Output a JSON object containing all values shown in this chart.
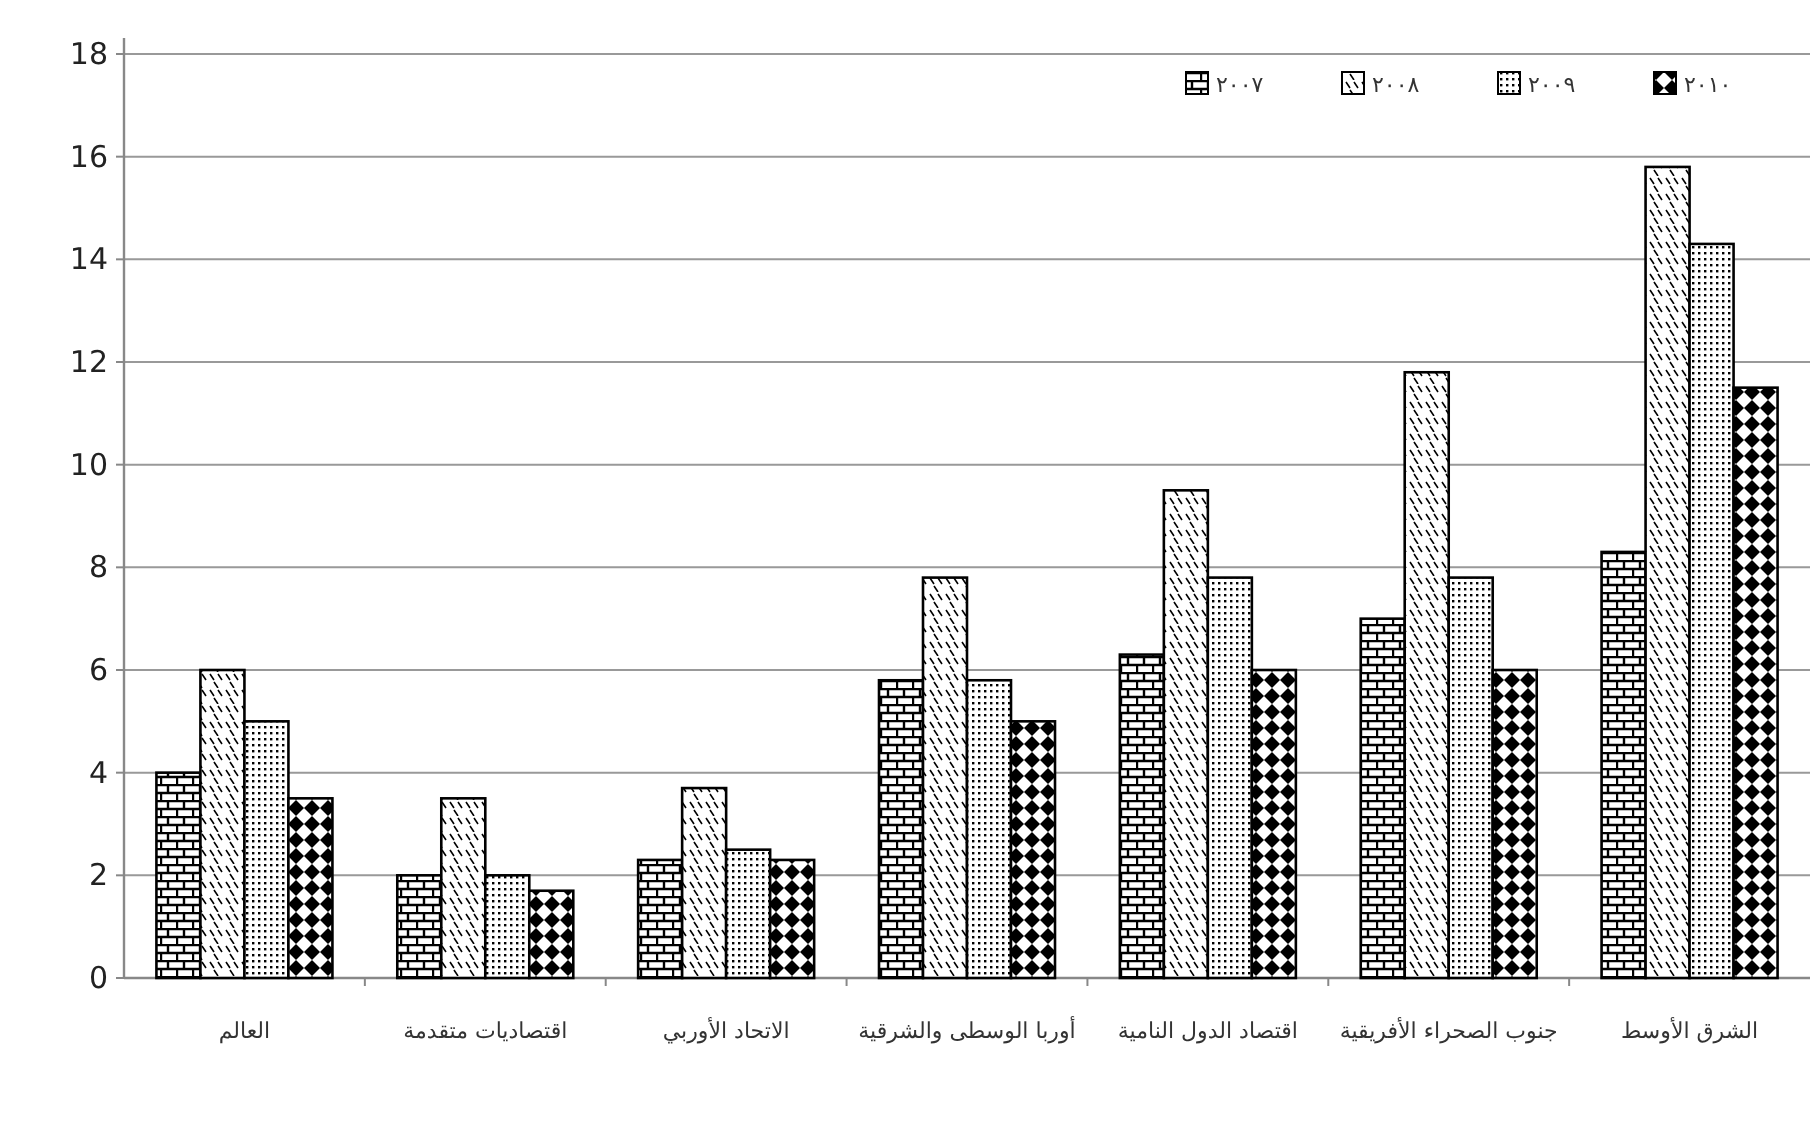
{
  "chart_data": {
    "type": "bar",
    "categories": [
      "العالم",
      "اقتصاديات متقدمة",
      "الاتحاد الأوربي",
      "أوربا الوسطى والشرقية",
      "اقتصاد الدول النامية",
      "جنوب الصحراء الأفريقية",
      "الشرق الأوسط"
    ],
    "series": [
      {
        "name": "٢٠٠٧",
        "color": "#000000",
        "values": [
          4.0,
          2.0,
          2.3,
          5.8,
          6.3,
          7.0,
          8.3
        ]
      },
      {
        "name": "٢٠٠٨",
        "color": "#000000",
        "values": [
          6.0,
          3.5,
          3.7,
          7.8,
          9.5,
          11.8,
          15.8
        ]
      },
      {
        "name": "٢٠٠٩",
        "color": "#000000",
        "values": [
          5.0,
          2.0,
          2.5,
          5.8,
          7.8,
          7.8,
          14.3
        ]
      },
      {
        "name": "٢٠١٠",
        "color": "#000000",
        "values": [
          3.5,
          1.7,
          2.3,
          5.0,
          6.0,
          6.0,
          11.5
        ]
      }
    ],
    "ylim": [
      0,
      18
    ],
    "yticks": [
      0,
      2,
      4,
      6,
      8,
      10,
      12,
      14,
      16,
      18
    ],
    "grid": "y",
    "legend": "top right"
  }
}
